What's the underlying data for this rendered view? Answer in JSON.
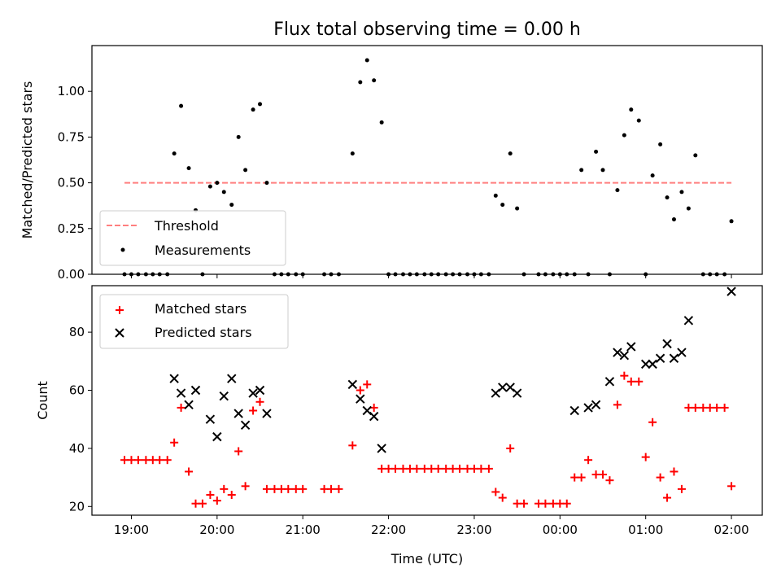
{
  "chart_data": [
    {
      "type": "scatter",
      "title": "Flux total observing time = 0.00 h",
      "ylabel": "Matched/Predicted stars",
      "xlabel": "",
      "x_ticks": [
        "19:00",
        "20:00",
        "21:00",
        "22:00",
        "23:00",
        "00:00",
        "01:00",
        "02:00"
      ],
      "y_ticks": [
        "0.00",
        "0.25",
        "0.50",
        "0.75",
        "1.00"
      ],
      "ylim": [
        0,
        1.25
      ],
      "xlim_hours": [
        18.54,
        26.36
      ],
      "legend_position": "lower-left",
      "threshold": {
        "name": "Threshold",
        "value": 0.5,
        "x_range": [
          18.92,
          26.0
        ],
        "color": "#ff7f7f",
        "style": "dashed"
      },
      "series": [
        {
          "name": "Measurements",
          "color": "#000000",
          "marker": "dot",
          "x": [
            18.92,
            19.0,
            19.08,
            19.17,
            19.25,
            19.33,
            19.42,
            19.5,
            19.58,
            19.67,
            19.75,
            19.83,
            19.92,
            20.0,
            20.08,
            20.17,
            20.25,
            20.33,
            20.42,
            20.5,
            20.58,
            20.67,
            20.75,
            20.83,
            20.92,
            21.0,
            21.25,
            21.33,
            21.42,
            21.58,
            21.67,
            21.75,
            21.83,
            21.92,
            22.0,
            22.08,
            22.17,
            22.25,
            22.33,
            22.42,
            22.5,
            22.58,
            22.67,
            22.75,
            22.83,
            22.92,
            23.0,
            23.08,
            23.17,
            23.25,
            23.33,
            23.42,
            23.5,
            23.58,
            23.75,
            23.83,
            23.92,
            24.0,
            24.08,
            24.17,
            24.25,
            24.33,
            24.42,
            24.5,
            24.58,
            24.67,
            24.75,
            24.83,
            24.92,
            25.0,
            25.08,
            25.17,
            25.25,
            25.33,
            25.42,
            25.5,
            25.58,
            25.67,
            25.75,
            25.83,
            25.92,
            26.0
          ],
          "y": [
            0,
            0,
            0,
            0,
            0,
            0,
            0,
            0.66,
            0.92,
            0.58,
            0.35,
            0,
            0.48,
            0.5,
            0.45,
            0.38,
            0.75,
            0.57,
            0.9,
            0.93,
            0.5,
            0,
            0,
            0,
            0,
            0,
            0,
            0,
            0,
            0.66,
            1.05,
            1.17,
            1.06,
            0.83,
            0,
            0,
            0,
            0,
            0,
            0,
            0,
            0,
            0,
            0,
            0,
            0,
            0,
            0,
            0,
            0.43,
            0.38,
            0.66,
            0.36,
            0,
            0,
            0,
            0,
            0,
            0,
            0,
            0.57,
            0,
            0.67,
            0.57,
            0,
            0.46,
            0.76,
            0.9,
            0.84,
            0,
            0.54,
            0.71,
            0.42,
            0.3,
            0.45,
            0.36,
            0.65,
            0,
            0,
            0,
            0,
            0.29
          ]
        }
      ]
    },
    {
      "type": "scatter",
      "title": "",
      "ylabel": "Count",
      "xlabel": "Time (UTC)",
      "x_ticks": [
        "19:00",
        "20:00",
        "21:00",
        "22:00",
        "23:00",
        "00:00",
        "01:00",
        "02:00"
      ],
      "y_ticks": [
        "20",
        "40",
        "60",
        "80"
      ],
      "ylim": [
        17,
        96
      ],
      "xlim_hours": [
        18.54,
        26.36
      ],
      "legend_position": "top-left",
      "series": [
        {
          "name": "Matched stars",
          "color": "#ff0000",
          "marker": "plus",
          "x": [
            18.92,
            19.0,
            19.08,
            19.17,
            19.25,
            19.33,
            19.42,
            19.5,
            19.58,
            19.67,
            19.75,
            19.83,
            19.92,
            20.0,
            20.08,
            20.17,
            20.25,
            20.33,
            20.42,
            20.5,
            20.58,
            20.67,
            20.75,
            20.83,
            20.92,
            21.0,
            21.25,
            21.33,
            21.42,
            21.58,
            21.67,
            21.75,
            21.83,
            21.92,
            22.0,
            22.08,
            22.17,
            22.25,
            22.33,
            22.42,
            22.5,
            22.58,
            22.67,
            22.75,
            22.83,
            22.92,
            23.0,
            23.08,
            23.17,
            23.25,
            23.33,
            23.42,
            23.5,
            23.58,
            23.75,
            23.83,
            23.92,
            24.0,
            24.08,
            24.17,
            24.25,
            24.33,
            24.42,
            24.5,
            24.58,
            24.67,
            24.75,
            24.83,
            24.92,
            25.0,
            25.08,
            25.17,
            25.25,
            25.33,
            25.42,
            25.5,
            25.58,
            25.67,
            25.75,
            25.83,
            25.92,
            26.0
          ],
          "y": [
            36,
            36,
            36,
            36,
            36,
            36,
            36,
            42,
            54,
            32,
            21,
            21,
            24,
            22,
            26,
            24,
            39,
            27,
            53,
            56,
            26,
            26,
            26,
            26,
            26,
            26,
            26,
            26,
            26,
            41,
            60,
            62,
            54,
            33,
            33,
            33,
            33,
            33,
            33,
            33,
            33,
            33,
            33,
            33,
            33,
            33,
            33,
            33,
            33,
            25,
            23,
            40,
            21,
            21,
            21,
            21,
            21,
            21,
            21,
            30,
            30,
            36,
            31,
            31,
            29,
            55,
            65,
            63,
            63,
            37,
            49,
            30,
            23,
            32,
            26,
            54,
            54,
            54,
            54,
            54,
            54,
            27
          ]
        },
        {
          "name": "Predicted stars",
          "color": "#000000",
          "marker": "x",
          "x": [
            19.5,
            19.58,
            19.67,
            19.75,
            19.92,
            20.0,
            20.08,
            20.17,
            20.25,
            20.33,
            20.42,
            20.5,
            20.58,
            21.58,
            21.67,
            21.75,
            21.83,
            21.92,
            23.25,
            23.33,
            23.42,
            23.5,
            24.17,
            24.33,
            24.42,
            24.58,
            24.67,
            24.75,
            24.83,
            25.0,
            25.08,
            25.17,
            25.25,
            25.33,
            25.42,
            25.5,
            26.0
          ],
          "y": [
            64,
            59,
            55,
            60,
            50,
            44,
            58,
            64,
            52,
            48,
            59,
            60,
            52,
            62,
            57,
            53,
            51,
            40,
            59,
            61,
            61,
            59,
            53,
            54,
            55,
            63,
            73,
            72,
            75,
            69,
            69,
            71,
            76,
            71,
            73,
            84,
            94
          ]
        }
      ]
    }
  ]
}
